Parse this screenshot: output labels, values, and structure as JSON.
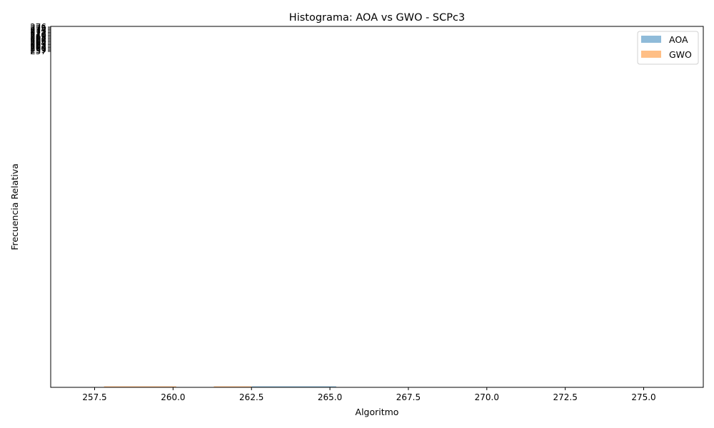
{
  "chart_data": {
    "type": "bar",
    "title": "Histograma: AOA vs GWO - SCPc3",
    "xlabel": "Algoritmo",
    "ylabel": "Frecuencia Relativa",
    "xlim": [
      256.1,
      276.9
    ],
    "ylim": [
      0,
      1
    ],
    "x_ticks": [
      "257.5",
      "260.0",
      "262.5",
      "265.0",
      "267.5",
      "270.0",
      "272.5",
      "275.0"
    ],
    "x_tick_values": [
      257.5,
      260.0,
      262.5,
      265.0,
      267.5,
      270.0,
      272.5,
      275.0
    ],
    "y_ticks_overlapping": [
      "257",
      "259",
      "260",
      "261",
      "262",
      "263",
      "264",
      "265",
      "266",
      "267",
      "268",
      "269",
      "270",
      "271",
      "272",
      "273",
      "274",
      "275",
      "276"
    ],
    "series": [
      {
        "name": "AOA",
        "color": "#1f77b4",
        "alpha": 0.5,
        "bins": [
          [
            262.5,
            265.2
          ]
        ],
        "values": [
          0.002
        ]
      },
      {
        "name": "GWO",
        "color": "#ff7f0e",
        "alpha": 0.5,
        "bins": [
          [
            257.8,
            260.1
          ],
          [
            261.3,
            262.5
          ]
        ],
        "values": [
          0.002,
          0.002
        ]
      }
    ],
    "legend_position": "top-right",
    "grid": false
  }
}
